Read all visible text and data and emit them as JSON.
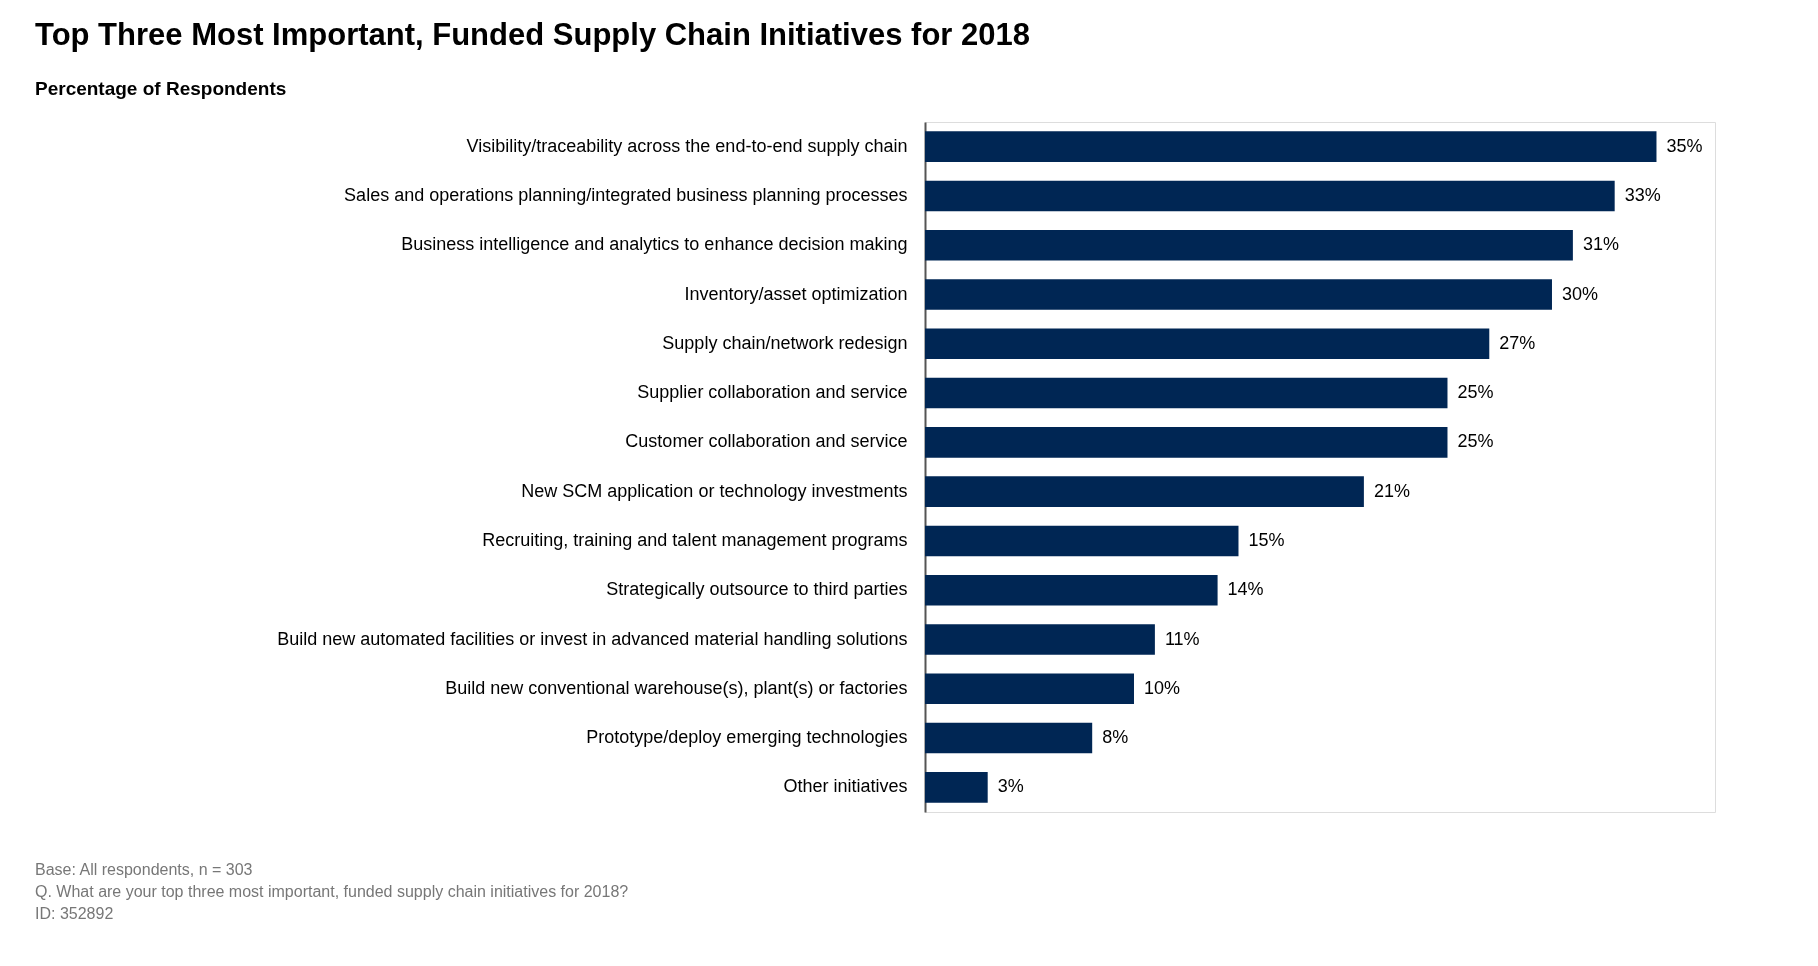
{
  "chart_data": {
    "type": "bar",
    "orientation": "horizontal",
    "title": "Top Three Most Important, Funded Supply Chain Initiatives for 2018",
    "subtitle": "Percentage of Respondents",
    "categories": [
      "Visibility/traceability across the end-to-end supply chain",
      "Sales and operations planning/integrated business planning processes",
      "Business intelligence and analytics to enhance decision making",
      "Inventory/asset optimization",
      "Supply chain/network redesign",
      "Supplier collaboration and service",
      "Customer collaboration and service",
      "New SCM application or technology investments",
      "Recruiting, training and talent management programs",
      "Strategically outsource to third parties",
      "Build new automated facilities or invest in advanced material handling solutions",
      "Build new conventional warehouse(s), plant(s) or factories",
      "Prototype/deploy emerging technologies",
      "Other initiatives"
    ],
    "values": [
      35,
      33,
      31,
      30,
      27,
      25,
      25,
      21,
      15,
      14,
      11,
      10,
      8,
      3
    ],
    "value_labels": [
      "35%",
      "33%",
      "31%",
      "30%",
      "27%",
      "25%",
      "25%",
      "21%",
      "15%",
      "14%",
      "11%",
      "10%",
      "8%",
      "3%"
    ],
    "color": "#002654",
    "annotations": [
      "Base: All respondents, n = 303",
      "Q. What are your top three most important, funded supply chain initiatives for 2018?",
      "ID: 352892"
    ]
  }
}
